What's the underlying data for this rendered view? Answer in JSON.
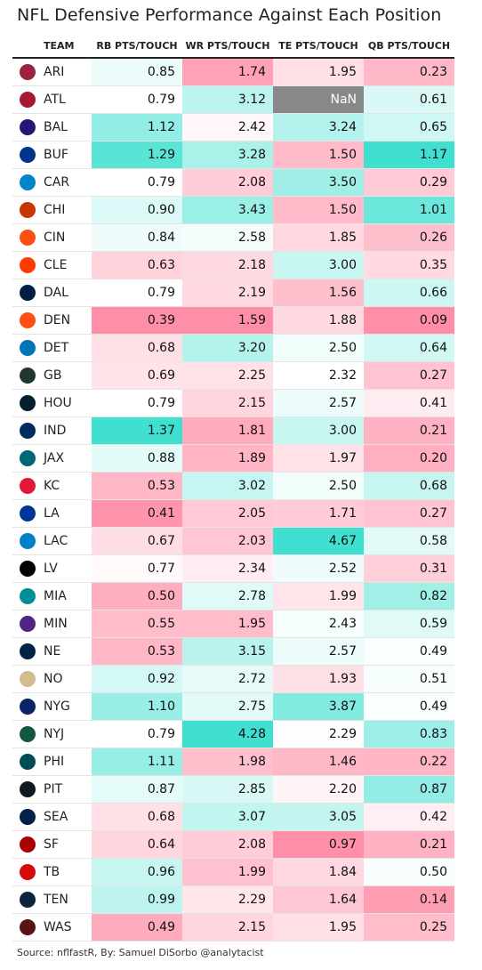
{
  "title": "NFL Defensive Performance Against Each Position",
  "source": "Source: nflfastR, By: Samuel DiSorbo @analytacist",
  "columns": [
    "TEAM",
    "RB PTS/TOUCH",
    "WR PTS/TOUCH",
    "TE PTS/TOUCH",
    "QB PTS/TOUCH"
  ],
  "colors": {
    "high": "#40e0d0",
    "low": "#ff8fa8",
    "na": "#888888",
    "neutral": "#ffffff"
  },
  "chart_data": {
    "type": "table",
    "title": "NFL Defensive Performance Against Each Position",
    "columns": [
      "TEAM",
      "RB PTS/TOUCH",
      "WR PTS/TOUCH",
      "TE PTS/TOUCH",
      "QB PTS/TOUCH"
    ],
    "rows": [
      {
        "team": "ARI",
        "logo_color": "#97233f",
        "values": [
          "0.85",
          "1.74",
          "1.95",
          "0.23"
        ]
      },
      {
        "team": "ATL",
        "logo_color": "#a71930",
        "values": [
          "0.79",
          "3.12",
          "NaN",
          "0.61"
        ]
      },
      {
        "team": "BAL",
        "logo_color": "#241773",
        "values": [
          "1.12",
          "2.42",
          "3.24",
          "0.65"
        ]
      },
      {
        "team": "BUF",
        "logo_color": "#00338d",
        "values": [
          "1.29",
          "3.28",
          "1.50",
          "1.17"
        ]
      },
      {
        "team": "CAR",
        "logo_color": "#0085ca",
        "values": [
          "0.79",
          "2.08",
          "3.50",
          "0.29"
        ]
      },
      {
        "team": "CHI",
        "logo_color": "#c83803",
        "values": [
          "0.90",
          "3.43",
          "1.50",
          "1.01"
        ]
      },
      {
        "team": "CIN",
        "logo_color": "#fb4f14",
        "values": [
          "0.84",
          "2.58",
          "1.85",
          "0.26"
        ]
      },
      {
        "team": "CLE",
        "logo_color": "#ff3c00",
        "values": [
          "0.63",
          "2.18",
          "3.00",
          "0.35"
        ]
      },
      {
        "team": "DAL",
        "logo_color": "#041e42",
        "values": [
          "0.79",
          "2.19",
          "1.56",
          "0.66"
        ]
      },
      {
        "team": "DEN",
        "logo_color": "#fb4f14",
        "values": [
          "0.39",
          "1.59",
          "1.88",
          "0.09"
        ]
      },
      {
        "team": "DET",
        "logo_color": "#0076b6",
        "values": [
          "0.68",
          "3.20",
          "2.50",
          "0.64"
        ]
      },
      {
        "team": "GB",
        "logo_color": "#203731",
        "values": [
          "0.69",
          "2.25",
          "2.32",
          "0.27"
        ]
      },
      {
        "team": "HOU",
        "logo_color": "#03202f",
        "values": [
          "0.79",
          "2.15",
          "2.57",
          "0.41"
        ]
      },
      {
        "team": "IND",
        "logo_color": "#002c5f",
        "values": [
          "1.37",
          "1.81",
          "3.00",
          "0.21"
        ]
      },
      {
        "team": "JAX",
        "logo_color": "#006778",
        "values": [
          "0.88",
          "1.89",
          "1.97",
          "0.20"
        ]
      },
      {
        "team": "KC",
        "logo_color": "#e31837",
        "values": [
          "0.53",
          "3.02",
          "2.50",
          "0.68"
        ]
      },
      {
        "team": "LA",
        "logo_color": "#003594",
        "values": [
          "0.41",
          "2.05",
          "1.71",
          "0.27"
        ]
      },
      {
        "team": "LAC",
        "logo_color": "#0080c6",
        "values": [
          "0.67",
          "2.03",
          "4.67",
          "0.58"
        ]
      },
      {
        "team": "LV",
        "logo_color": "#000000",
        "values": [
          "0.77",
          "2.34",
          "2.52",
          "0.31"
        ]
      },
      {
        "team": "MIA",
        "logo_color": "#008e97",
        "values": [
          "0.50",
          "2.78",
          "1.99",
          "0.82"
        ]
      },
      {
        "team": "MIN",
        "logo_color": "#4f2683",
        "values": [
          "0.55",
          "1.95",
          "2.43",
          "0.59"
        ]
      },
      {
        "team": "NE",
        "logo_color": "#002244",
        "values": [
          "0.53",
          "3.15",
          "2.57",
          "0.49"
        ]
      },
      {
        "team": "NO",
        "logo_color": "#d3bc8d",
        "values": [
          "0.92",
          "2.72",
          "1.93",
          "0.51"
        ]
      },
      {
        "team": "NYG",
        "logo_color": "#0b2265",
        "values": [
          "1.10",
          "2.75",
          "3.87",
          "0.49"
        ]
      },
      {
        "team": "NYJ",
        "logo_color": "#125740",
        "values": [
          "0.79",
          "4.28",
          "2.29",
          "0.83"
        ]
      },
      {
        "team": "PHI",
        "logo_color": "#004c54",
        "values": [
          "1.11",
          "1.98",
          "1.46",
          "0.22"
        ]
      },
      {
        "team": "PIT",
        "logo_color": "#101820",
        "values": [
          "0.87",
          "2.85",
          "2.20",
          "0.87"
        ]
      },
      {
        "team": "SEA",
        "logo_color": "#002244",
        "values": [
          "0.68",
          "3.07",
          "3.05",
          "0.42"
        ]
      },
      {
        "team": "SF",
        "logo_color": "#aa0000",
        "values": [
          "0.64",
          "2.08",
          "0.97",
          "0.21"
        ]
      },
      {
        "team": "TB",
        "logo_color": "#d50a0a",
        "values": [
          "0.96",
          "1.99",
          "1.84",
          "0.50"
        ]
      },
      {
        "team": "TEN",
        "logo_color": "#0c2340",
        "values": [
          "0.99",
          "2.29",
          "1.64",
          "0.14"
        ]
      },
      {
        "team": "WAS",
        "logo_color": "#5a1414",
        "values": [
          "0.49",
          "2.15",
          "1.95",
          "0.25"
        ]
      }
    ]
  }
}
